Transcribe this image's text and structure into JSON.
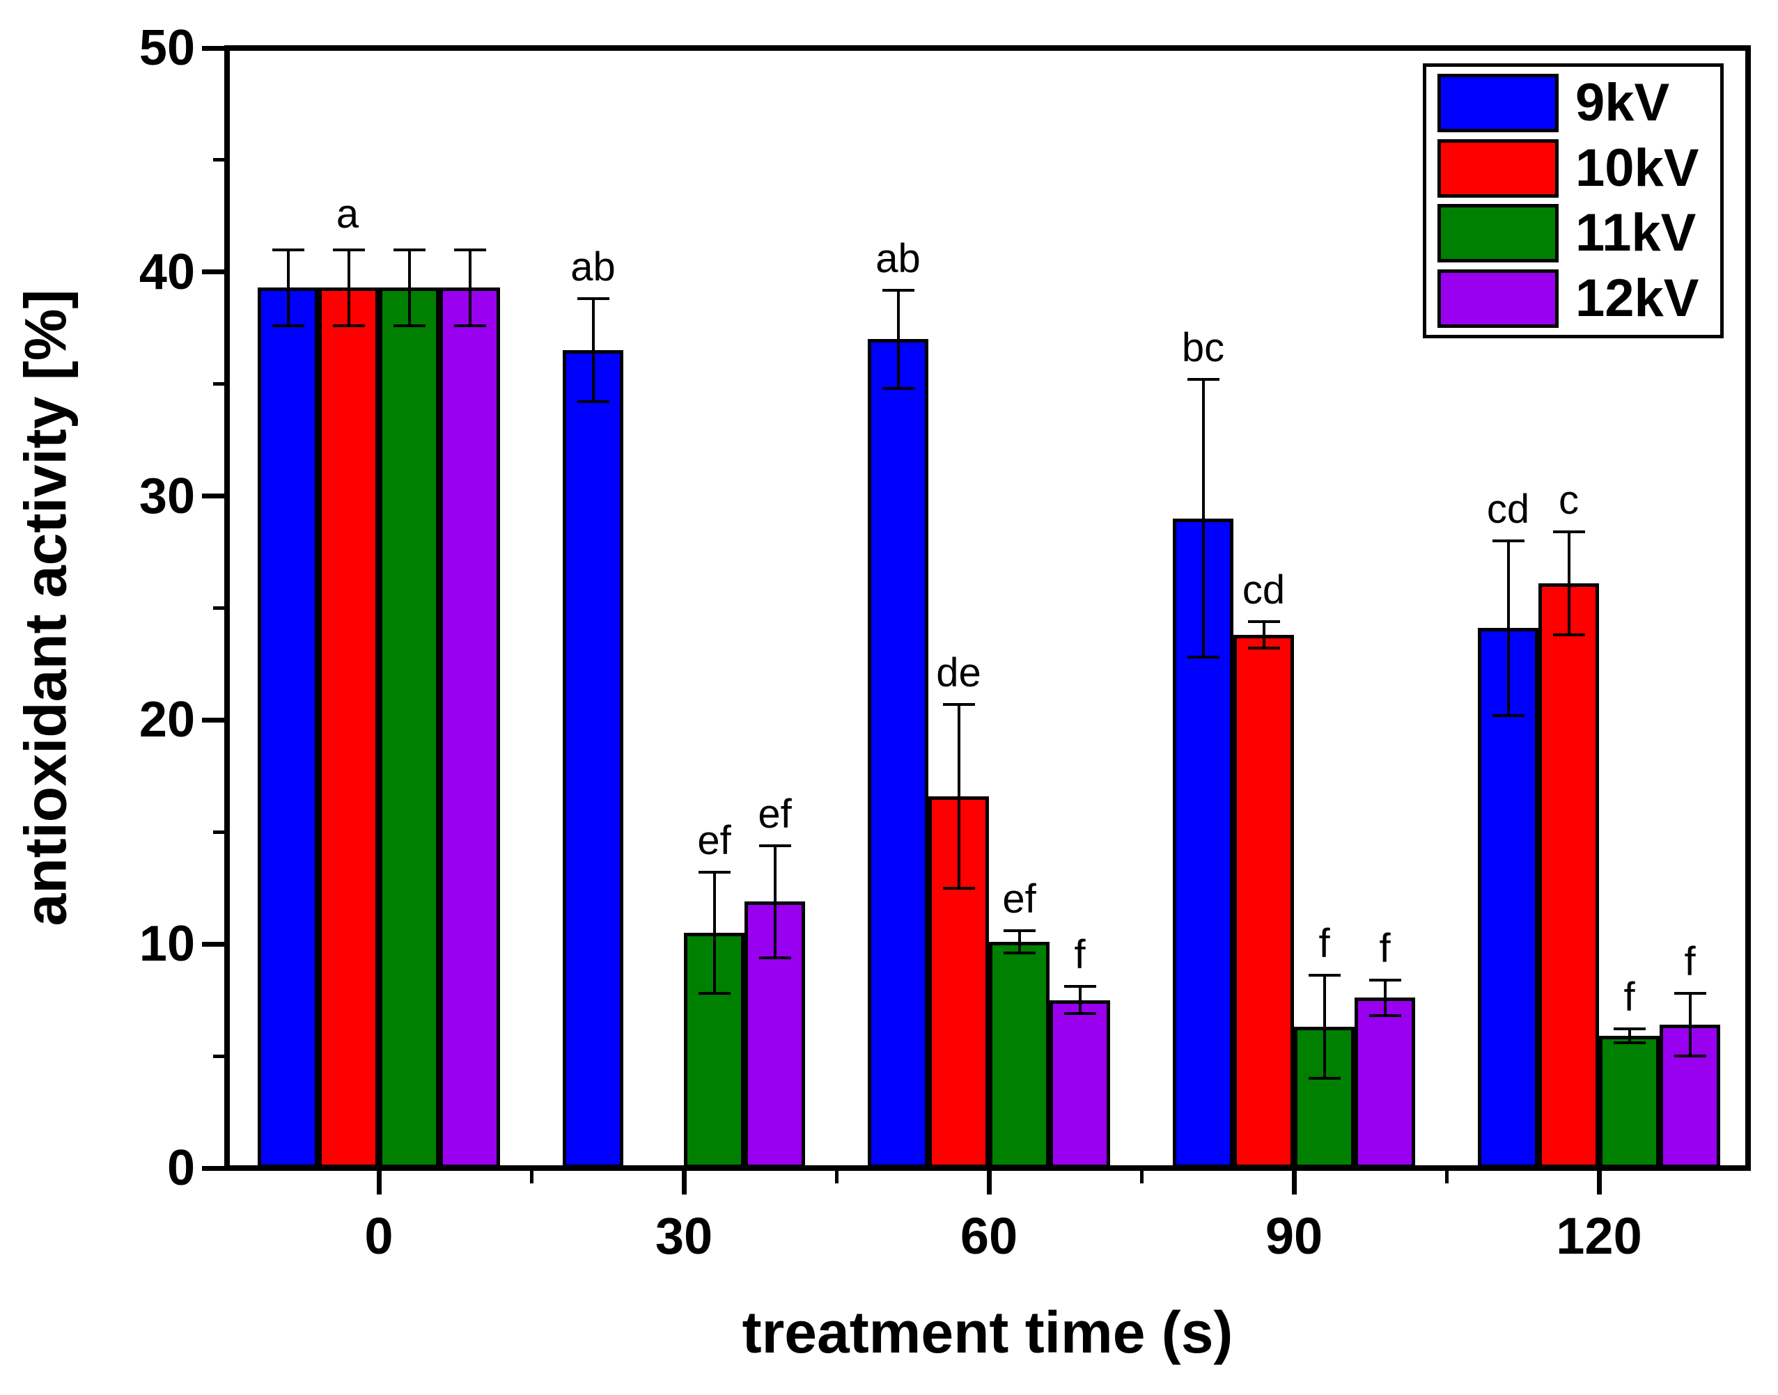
{
  "chart_data": {
    "type": "bar",
    "title": "",
    "xlabel": "treatment time (s)",
    "ylabel": "antioxidant activity [%]",
    "categories": [
      "0",
      "30",
      "60",
      "90",
      "120"
    ],
    "ylim": [
      0,
      50
    ],
    "y_major_ticks": [
      "0",
      "10",
      "20",
      "30",
      "40",
      "50"
    ],
    "y_major_tick_values": [
      0,
      10,
      20,
      30,
      40,
      50
    ],
    "y_minor_tick_values": [
      5,
      15,
      25,
      35,
      45
    ],
    "x_minor_tick_positions": [
      15,
      45,
      75,
      105
    ],
    "grid": false,
    "legend_position": "top-right",
    "bar_edge_color": "#000000",
    "background_color": "#FFFFFF",
    "error_bars": true,
    "series": [
      {
        "name": "9kV",
        "color": "#0000FF",
        "values": [
          39.3,
          36.5,
          37.0,
          29.0,
          24.1
        ],
        "errors": [
          1.7,
          2.3,
          2.2,
          6.2,
          3.9
        ],
        "sig_labels": [
          "",
          "ab",
          "ab",
          "bc",
          "cd"
        ]
      },
      {
        "name": "10kV",
        "color": "#FF0000",
        "values": [
          39.3,
          null,
          16.6,
          23.8,
          26.1
        ],
        "errors": [
          1.7,
          null,
          4.1,
          0.6,
          2.3
        ],
        "sig_labels": [
          "",
          "",
          "de",
          "cd",
          "c"
        ]
      },
      {
        "name": "11kV",
        "color": "#008000",
        "values": [
          39.3,
          10.5,
          10.1,
          6.3,
          5.9
        ],
        "errors": [
          1.7,
          2.7,
          0.5,
          2.3,
          0.3
        ],
        "sig_labels": [
          "",
          "ef",
          "ef",
          "f",
          "f"
        ]
      },
      {
        "name": "12kV",
        "color": "#9900F0",
        "values": [
          39.3,
          11.9,
          7.5,
          7.6,
          6.4
        ],
        "errors": [
          1.7,
          2.5,
          0.6,
          0.8,
          1.4
        ],
        "sig_labels": [
          "",
          "ef",
          "f",
          "f",
          "f"
        ]
      }
    ],
    "group_labels": [
      {
        "category_index": 0,
        "text": "a"
      }
    ]
  }
}
